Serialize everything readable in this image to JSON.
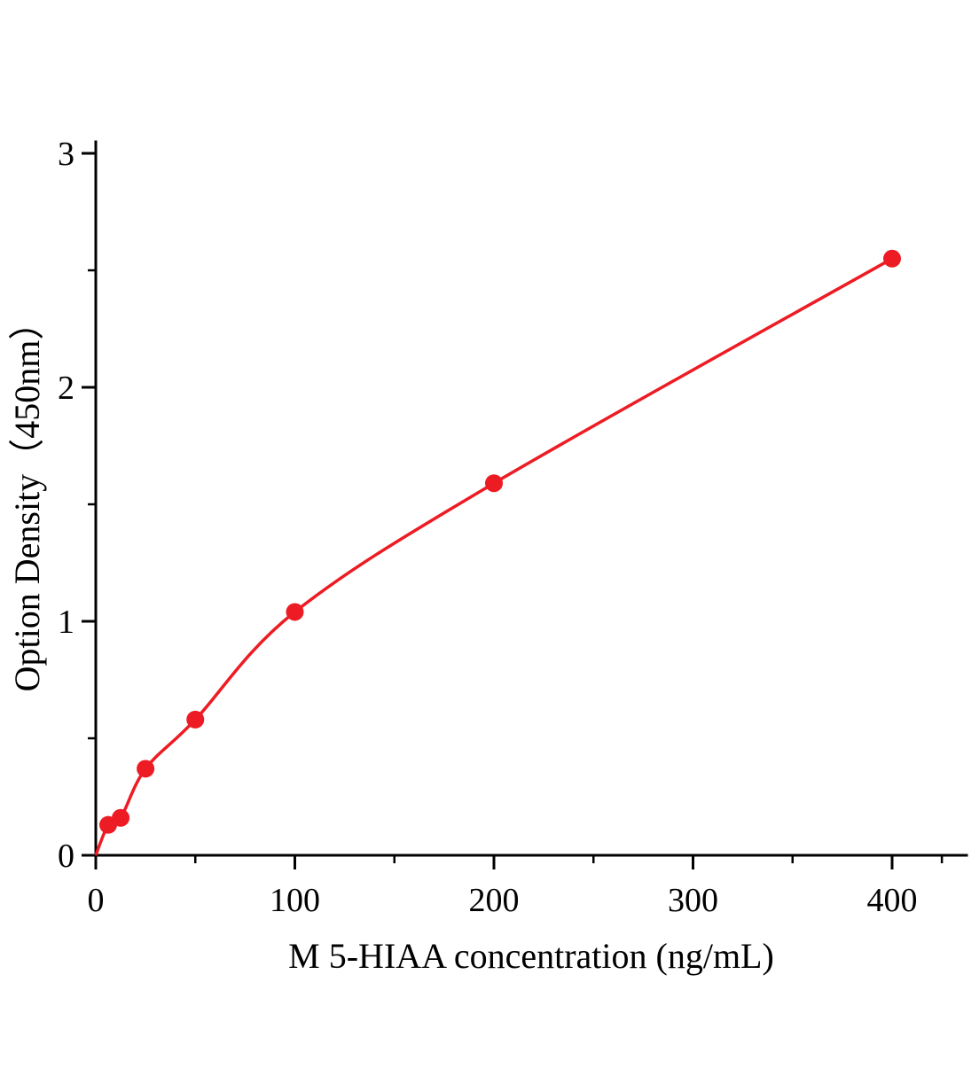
{
  "chart_data": {
    "type": "scatter",
    "title": "",
    "xlabel": "M 5-HIAA concentration (ng/mL)",
    "ylabel": "Option Density（450nm）",
    "x": [
      6.25,
      12.5,
      25,
      50,
      100,
      200,
      400
    ],
    "y": [
      0.13,
      0.16,
      0.37,
      0.58,
      1.04,
      1.59,
      2.55
    ],
    "curve_origin": [
      0,
      0
    ],
    "xlim": [
      0,
      400
    ],
    "ylim": [
      0,
      3
    ],
    "xticks": [
      0,
      100,
      200,
      300,
      400
    ],
    "yticks": [
      0,
      1,
      2,
      3
    ],
    "x_minor_ticks": [
      50,
      150,
      250,
      350,
      425
    ],
    "y_minor_ticks": [
      0.5,
      1.5,
      2.5
    ],
    "grid": false,
    "legend": "none",
    "point_color": "#ed1c24",
    "line_color": "#ed1c24",
    "axis_color": "#000000"
  }
}
